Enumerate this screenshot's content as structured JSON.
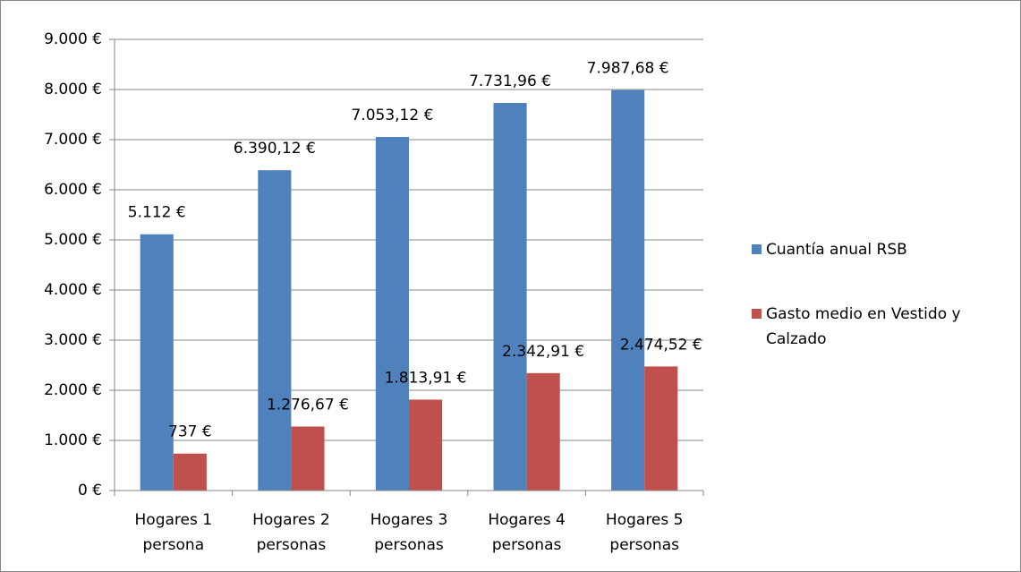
{
  "chart_data": {
    "type": "bar",
    "categories": [
      "Hogares 1 persona",
      "Hogares 2 personas",
      "Hogares 3 personas",
      "Hogares 4 personas",
      "Hogares 5 personas"
    ],
    "series": [
      {
        "name": "Cuantía anual RSB",
        "color": "#4f81bd",
        "values": [
          5112,
          6390.12,
          7053.12,
          7731.96,
          7987.68
        ],
        "value_labels": [
          "5.112 €",
          "6.390,12 €",
          "7.053,12 €",
          "7.731,96 €",
          "7.987,68 €"
        ]
      },
      {
        "name": "Gasto medio en Vestido y Calzado",
        "color": "#c0504d",
        "values": [
          737,
          1276.67,
          1813.91,
          2342.91,
          2474.52
        ],
        "value_labels": [
          "737 €",
          "1.276,67 €",
          "1.813,91 €",
          "2.342,91 €",
          "2.474,52 €"
        ]
      }
    ],
    "ylim": [
      0,
      9000
    ],
    "yticks": [
      {
        "value": 0,
        "label": "0 €"
      },
      {
        "value": 1000,
        "label": "1.000 €"
      },
      {
        "value": 2000,
        "label": "2.000 €"
      },
      {
        "value": 3000,
        "label": "3.000 €"
      },
      {
        "value": 4000,
        "label": "4.000 €"
      },
      {
        "value": 5000,
        "label": "5.000 €"
      },
      {
        "value": 6000,
        "label": "6.000 €"
      },
      {
        "value": 7000,
        "label": "7.000 €"
      },
      {
        "value": 8000,
        "label": "8.000 €"
      },
      {
        "value": 9000,
        "label": "9.000 €"
      }
    ],
    "grid": true,
    "legend": "right"
  }
}
